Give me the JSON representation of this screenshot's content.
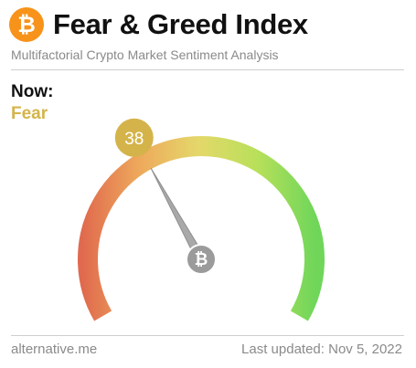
{
  "header": {
    "title": "Fear & Greed Index",
    "subtitle": "Multifactorial Crypto Market Sentiment Analysis",
    "logo_icon": "bitcoin-icon",
    "logo_glyph": "₿",
    "logo_color": "#f7931a"
  },
  "current": {
    "label": "Now:",
    "classification": "Fear",
    "value": 38,
    "value_text": "38",
    "classification_color": "#d4b44a"
  },
  "gauge": {
    "min": 0,
    "max": 100,
    "badge_color": "#d4b44a",
    "needle_color": "#a9a9a9",
    "hub_color": "#9b9b9b",
    "hub_glyph": "₿",
    "colors": {
      "extreme_fear": "#e06a4e",
      "fear": "#eeaa5c",
      "neutral": "#e4d86a",
      "greed": "#b8e05a",
      "extreme_greed": "#6fd65a"
    }
  },
  "footer": {
    "source": "alternative.me",
    "updated": "Last updated: Nov 5, 2022"
  }
}
